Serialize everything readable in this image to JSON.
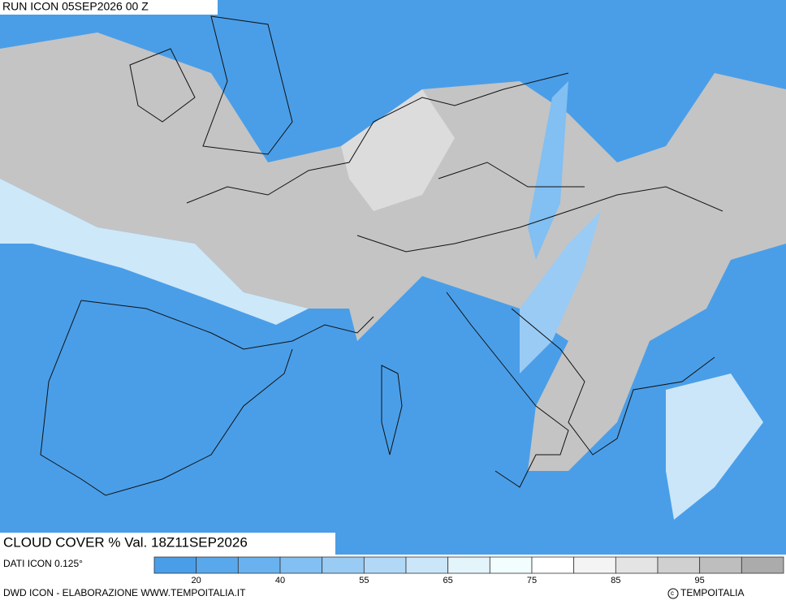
{
  "header": {
    "run": "RUN ICON 05SEP2026 00 Z"
  },
  "map": {
    "title": "CLOUD COVER % Val. 18Z11SEP2026"
  },
  "legend": {
    "source": "DATI ICON 0.125°",
    "colors": [
      "#4a9ee8",
      "#5aa8ec",
      "#6ab2ef",
      "#82bff2",
      "#9acbf4",
      "#b2d8f7",
      "#cbe6f9",
      "#e4f4fb",
      "#f2fdfd",
      "#ffffff",
      "#f4f4f4",
      "#e4e4e4",
      "#d0d0d0",
      "#bebebe",
      "#ababab"
    ],
    "ticks": [
      20,
      40,
      55,
      65,
      75,
      85,
      95
    ]
  },
  "footer": {
    "credit": "DWD ICON - ELABORAZIONE WWW.TEMPOITALIA.IT",
    "copyright": "TEMPOITALIA"
  }
}
